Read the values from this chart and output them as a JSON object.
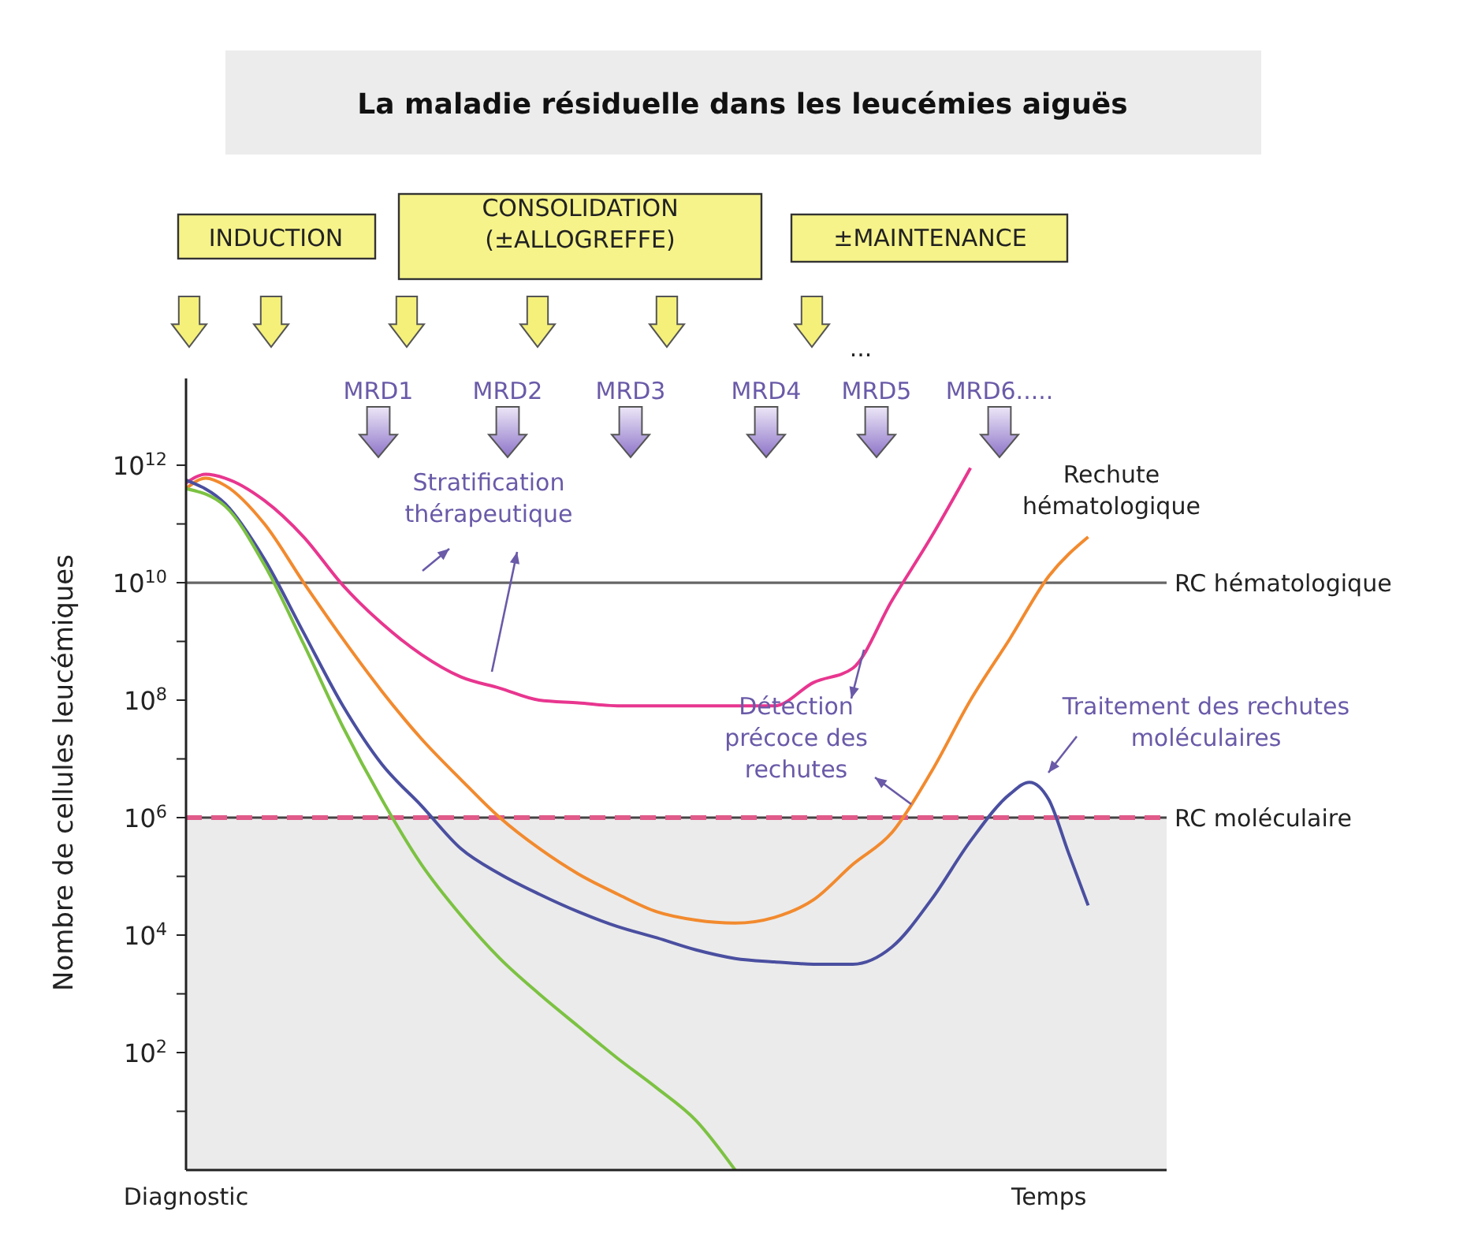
{
  "chart_data": {
    "type": "line",
    "title": "La maladie résiduelle dans les leucémies aiguës",
    "ylabel": "Nombre de cellules leucémiques",
    "log": "y",
    "categories": [
      "Diagnostic",
      null,
      null,
      null,
      null,
      null,
      null,
      null,
      null,
      null,
      null,
      null,
      null,
      null,
      null,
      null,
      null,
      null,
      null,
      null,
      null,
      null,
      null,
      null,
      null,
      null,
      null,
      null,
      null,
      null,
      null,
      null,
      null,
      null,
      null,
      null,
      null,
      null,
      null,
      null,
      null,
      null,
      null,
      null,
      "Temps",
      null,
      null,
      null,
      null,
      null,
      null
    ],
    "ylim": [
      1,
      30000000000000.0
    ],
    "yticks": [
      {
        "value": 10,
        "label": null
      },
      {
        "value": 100,
        "label": "10$^{2}$"
      },
      {
        "value": 1000,
        "label": null
      },
      {
        "value": 10000,
        "label": "10$^{4}$"
      },
      {
        "value": 100000,
        "label": null
      },
      {
        "value": 1000000,
        "label": "10$^{6}$"
      },
      {
        "value": 10000000,
        "label": null
      },
      {
        "value": 100000000,
        "label": "10$^{8}$"
      },
      {
        "value": 1000000000,
        "label": null
      },
      {
        "value": 10000000000,
        "label": "10$^{10}$"
      },
      {
        "value": 100000000000,
        "label": null
      },
      {
        "value": 1000000000000,
        "label": "10$^{12}$"
      }
    ],
    "series": [
      {
        "color": "#e8368f",
        "values": [
          500000000000.0,
          700000000000.0,
          600000000000.0,
          null,
          250000000000.0,
          null,
          60000000000.0,
          null,
          9000000000.0,
          null,
          2000000000.0,
          null,
          600000000.0,
          null,
          250000000.0,
          null,
          160000000.0,
          null,
          100000000.0,
          null,
          90000000.0,
          null,
          80000000.0,
          null,
          80000000.0,
          null,
          80000000.0,
          null,
          80000000.0,
          null,
          80000000.0,
          null,
          200000000.0,
          null,
          350000000.0,
          null,
          5000000000.0,
          null,
          60000000000.0,
          null,
          900000000000.0,
          null,
          null,
          null,
          null,
          null,
          null,
          null,
          null,
          null,
          null
        ]
      },
      {
        "color": "#f28a2e",
        "values": [
          400000000000.0,
          600000000000.0,
          450000000000.0,
          null,
          100000000000.0,
          null,
          10000000000.0,
          null,
          1100000000.0,
          null,
          140000000.0,
          null,
          22000000.0,
          null,
          4500000.0,
          null,
          1000000.0,
          null,
          300000.0,
          null,
          110000.0,
          null,
          50000.0,
          null,
          25000.0,
          null,
          18000.0,
          null,
          16000.0,
          null,
          20000.0,
          null,
          40000.0,
          null,
          160000.0,
          null,
          560000.0,
          null,
          6000000.0,
          null,
          100000000.0,
          null,
          1100000000.0,
          null,
          13000000000.0,
          null,
          60000000000.0,
          null,
          null,
          null,
          null
        ]
      },
      {
        "color": "#4a4fa0",
        "values": [
          560000000000.0,
          null,
          220000000000.0,
          null,
          25000000000.0,
          null,
          1400000000.0,
          null,
          80000000.0,
          null,
          8000000.0,
          null,
          1600000.0,
          null,
          300000.0,
          null,
          110000.0,
          null,
          50000.0,
          null,
          25000.0,
          null,
          14000.0,
          null,
          9000.0,
          null,
          5600.0,
          null,
          4000.0,
          null,
          3500.0,
          null,
          3200.0,
          null,
          3200.0,
          null,
          6300.0,
          null,
          40000.0,
          null,
          400000.0,
          null,
          2500000.0,
          4000000.0,
          2000000.0,
          250000.0,
          32000.0,
          null,
          null,
          null,
          null
        ]
      },
      {
        "color": "#7cc242",
        "values": [
          400000000000.0,
          null,
          200000000000.0,
          null,
          20000000000.0,
          null,
          900000000.0,
          null,
          35000000.0,
          null,
          2000000.0,
          null,
          160000.0,
          null,
          22000.0,
          null,
          4000.0,
          null,
          1000.0,
          null,
          280,
          null,
          80,
          null,
          25,
          null,
          7,
          null,
          1,
          null,
          null,
          null,
          null,
          null,
          null,
          null,
          null,
          null,
          null,
          null,
          null,
          null,
          null,
          null,
          null,
          null,
          null,
          null,
          null,
          null,
          null
        ]
      }
    ],
    "ref_lines": [
      {
        "axis": "y",
        "value": 10000000000,
        "label": "RC hématologique",
        "color": "#666666"
      },
      {
        "axis": "y",
        "value": 1000000,
        "label": "RC moléculaire",
        "color": "#444444"
      },
      {
        "axis": "y",
        "value": 1000000,
        "color": "#e05a8a",
        "line_style": "dashed"
      }
    ],
    "bands": [
      {
        "axis": "y",
        "from": 1,
        "to": 1000000,
        "color": "#ebebeb"
      }
    ],
    "annotations": [
      "INDUCTION",
      "CONSOLIDATION\n(±ALLOGREFFE)",
      "±MAINTENANCE",
      "...",
      "MRD1",
      "MRD2",
      "MRD3",
      "MRD4",
      "MRD5",
      "MRD6.....",
      "Stratification\nthérapeutique",
      "Rechute\nhématologique",
      "Détection\nprécoce des\nrechutes",
      "Traitement des rechutes\nmoléculaires"
    ]
  }
}
